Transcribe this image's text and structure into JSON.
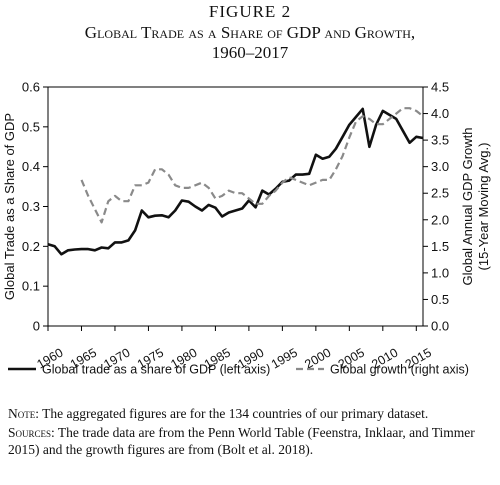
{
  "figure": {
    "label": "FIGURE 2",
    "title": "Global Trade as a Share of GDP and Growth,",
    "years": "1960–2017"
  },
  "notes": {
    "note_label": "Note:",
    "note_text": "The aggregated figures are for the 134 countries of our primary dataset.",
    "sources_label": "Sources:",
    "sources_text": "The trade data are from the Penn World Table (Feenstra, Inklaar, and Timmer 2015) and the growth figures are from (Bolt et al. 2018)."
  },
  "colors": {
    "trade": "#111111",
    "growth": "#8a8a8a",
    "axis": "#000000"
  },
  "chart_data": {
    "type": "line",
    "xlim": [
      1960,
      2016
    ],
    "x_ticks": [
      1960,
      1965,
      1970,
      1975,
      1980,
      1985,
      1990,
      1995,
      2000,
      2005,
      2010,
      2015
    ],
    "y_left": {
      "label": "Global Trade as a Share of GDP",
      "lim": [
        0,
        0.6
      ],
      "ticks": [
        "0",
        "0.1",
        "0.2",
        "0.3",
        "0.4",
        "0.5",
        "0.6"
      ]
    },
    "y_right": {
      "label_line1": "Global Annual GDP Growth",
      "label_line2": "(15-Year Moving Avg.)",
      "lim": [
        0,
        4.5
      ],
      "ticks": [
        "0.0",
        "0.5",
        "1.0",
        "1.5",
        "2.0",
        "2.5",
        "3.0",
        "3.5",
        "4.0",
        "4.5"
      ]
    },
    "legend_position": "bottom",
    "series": [
      {
        "name": "Global trade as a share of GDP (left axis)",
        "axis": "left",
        "style": "solid",
        "x": [
          1960,
          1961,
          1962,
          1963,
          1964,
          1965,
          1966,
          1967,
          1968,
          1969,
          1970,
          1971,
          1972,
          1973,
          1974,
          1975,
          1976,
          1977,
          1978,
          1979,
          1980,
          1981,
          1982,
          1983,
          1984,
          1985,
          1986,
          1987,
          1988,
          1989,
          1990,
          1991,
          1992,
          1993,
          1994,
          1995,
          1996,
          1997,
          1998,
          1999,
          2000,
          2001,
          2002,
          2003,
          2004,
          2005,
          2006,
          2007,
          2008,
          2009,
          2010,
          2011,
          2012,
          2013,
          2014,
          2015,
          2016
        ],
        "values": [
          0.205,
          0.2,
          0.18,
          0.19,
          0.192,
          0.193,
          0.193,
          0.19,
          0.197,
          0.195,
          0.21,
          0.21,
          0.215,
          0.24,
          0.29,
          0.273,
          0.277,
          0.278,
          0.273,
          0.29,
          0.315,
          0.312,
          0.3,
          0.29,
          0.304,
          0.297,
          0.275,
          0.285,
          0.29,
          0.295,
          0.315,
          0.298,
          0.34,
          0.33,
          0.345,
          0.362,
          0.365,
          0.38,
          0.38,
          0.382,
          0.43,
          0.42,
          0.425,
          0.445,
          0.475,
          0.505,
          0.525,
          0.545,
          0.45,
          0.505,
          0.54,
          0.53,
          0.52,
          0.49,
          0.46,
          0.475,
          0.472
        ]
      },
      {
        "name": "Global growth (right axis)",
        "axis": "right",
        "style": "dashed",
        "x": [
          1965,
          1966,
          1967,
          1968,
          1969,
          1970,
          1971,
          1972,
          1973,
          1974,
          1975,
          1976,
          1977,
          1978,
          1979,
          1980,
          1981,
          1982,
          1983,
          1984,
          1985,
          1986,
          1987,
          1988,
          1989,
          1990,
          1991,
          1992,
          1993,
          1994,
          1995,
          1996,
          1997,
          1998,
          1999,
          2000,
          2001,
          2002,
          2003,
          2004,
          2005,
          2006,
          2007,
          2008,
          2009,
          2010,
          2011,
          2012,
          2013,
          2014,
          2015,
          2016
        ],
        "values": [
          2.75,
          2.45,
          2.2,
          1.95,
          2.35,
          2.45,
          2.35,
          2.35,
          2.65,
          2.65,
          2.7,
          2.95,
          2.95,
          2.85,
          2.65,
          2.6,
          2.6,
          2.65,
          2.7,
          2.6,
          2.4,
          2.45,
          2.55,
          2.5,
          2.5,
          2.4,
          2.3,
          2.3,
          2.45,
          2.55,
          2.7,
          2.8,
          2.75,
          2.7,
          2.65,
          2.7,
          2.75,
          2.75,
          2.95,
          3.2,
          3.55,
          3.85,
          3.95,
          3.9,
          3.8,
          3.8,
          3.9,
          4.0,
          4.1,
          4.1,
          4.05,
          3.95
        ]
      }
    ]
  }
}
